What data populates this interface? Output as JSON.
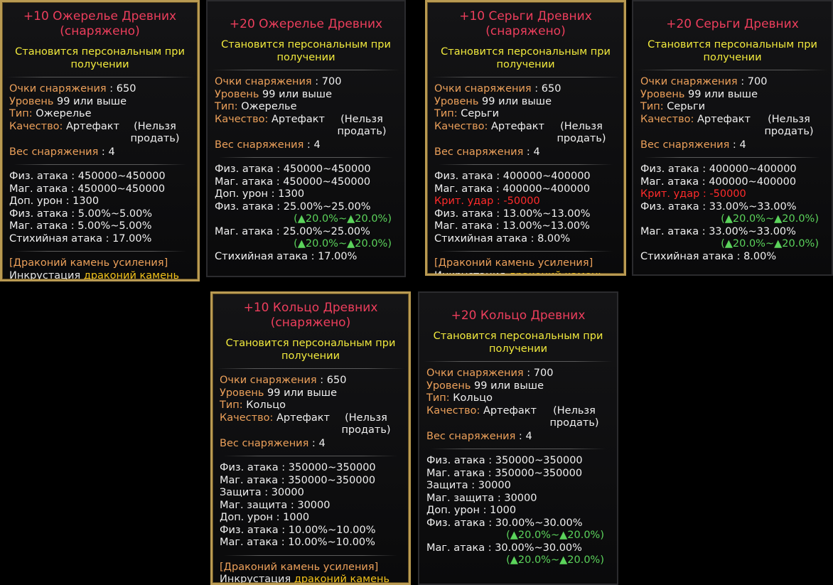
{
  "labels": {
    "gear_score": "Очки снаряжения",
    "level": "Уровень",
    "level_suffix": "или выше",
    "type": "Тип:",
    "quality": "Качество:",
    "weight": "Вес снаряжения",
    "bind": "Становится персональным при получении",
    "unsellable": "(Нельзя продать)",
    "gem": "[Драконий камень усиления]",
    "gem_prefix": "Инкрустация",
    "gem_name": "драконий камень"
  },
  "tooltips": [
    {
      "title": "+10 Ожерелье Древних\n(снаряжено)",
      "equipped": true,
      "gear_score": "650",
      "level": "99",
      "type": "Ожерелье",
      "quality": "Артефакт",
      "weight": "4",
      "stats": [
        {
          "text": "Физ. атака : 450000~450000"
        },
        {
          "text": "Маг. атака : 450000~450000"
        },
        {
          "text": "Доп. урон : 1300"
        },
        {
          "text": "Физ. атака : 5.00%~5.00%"
        },
        {
          "text": "Маг. атака : 5.00%~5.00%"
        },
        {
          "text": "Стихийная атака : 17.00%"
        }
      ],
      "has_gem": true
    },
    {
      "title": "+20 Ожерелье Древних",
      "equipped": false,
      "gear_score": "700",
      "level": "99",
      "type": "Ожерелье",
      "quality": "Артефакт",
      "weight": "4",
      "stats": [
        {
          "text": "Физ. атака : 450000~450000"
        },
        {
          "text": "Маг. атака : 450000~450000"
        },
        {
          "text": "Доп. урон : 1300"
        },
        {
          "text": "Физ. атака : 25.00%~25.00%",
          "bonus": "(▲20.0%~▲20.0%)"
        },
        {
          "text": "Маг. атака : 25.00%~25.00%",
          "bonus": "(▲20.0%~▲20.0%)"
        },
        {
          "text": "Стихийная атака : 17.00%"
        }
      ],
      "has_gem": false
    },
    {
      "title": "+10 Серьги Древних\n(снаряжено)",
      "equipped": true,
      "gear_score": "650",
      "level": "99",
      "type": "Серьги",
      "quality": "Артефакт",
      "weight": "4",
      "stats": [
        {
          "text": "Физ. атака : 400000~400000"
        },
        {
          "text": "Маг. атака : 400000~400000"
        },
        {
          "text": "Крит. удар : -50000",
          "red": true
        },
        {
          "text": "Физ. атака : 13.00%~13.00%"
        },
        {
          "text": "Маг. атака : 13.00%~13.00%"
        },
        {
          "text": "Стихийная атака : 8.00%"
        }
      ],
      "has_gem": true
    },
    {
      "title": "+20 Серьги Древних",
      "equipped": false,
      "gear_score": "700",
      "level": "99",
      "type": "Серьги",
      "quality": "Артефакт",
      "weight": "4",
      "stats": [
        {
          "text": "Физ. атака : 400000~400000"
        },
        {
          "text": "Маг. атака : 400000~400000"
        },
        {
          "text": "Крит. удар : -50000",
          "red": true
        },
        {
          "text": "Физ. атака : 33.00%~33.00%",
          "bonus": "(▲20.0%~▲20.0%)"
        },
        {
          "text": "Маг. атака : 33.00%~33.00%",
          "bonus": "(▲20.0%~▲20.0%)"
        },
        {
          "text": "Стихийная атака : 8.00%"
        }
      ],
      "has_gem": false
    },
    {
      "title": "+10 Кольцо Древних\n(снаряжено)",
      "equipped": true,
      "gear_score": "650",
      "level": "99",
      "type": "Кольцо",
      "quality": "Артефакт",
      "weight": "4",
      "stats": [
        {
          "text": "Физ. атака : 350000~350000"
        },
        {
          "text": "Маг. атака : 350000~350000"
        },
        {
          "text": "Защита : 30000"
        },
        {
          "text": "Маг. защита : 30000"
        },
        {
          "text": "Доп. урон : 1000"
        },
        {
          "text": "Физ. атака : 10.00%~10.00%"
        },
        {
          "text": "Маг. атака : 10.00%~10.00%"
        }
      ],
      "has_gem": true
    },
    {
      "title": "+20 Кольцо Древних",
      "equipped": false,
      "gear_score": "700",
      "level": "99",
      "type": "Кольцо",
      "quality": "Артефакт",
      "weight": "4",
      "stats": [
        {
          "text": "Физ. атака : 350000~350000"
        },
        {
          "text": "Маг. атака : 350000~350000"
        },
        {
          "text": "Защита : 30000"
        },
        {
          "text": "Маг. защита : 30000"
        },
        {
          "text": "Доп. урон : 1000"
        },
        {
          "text": "Физ. атака : 30.00%~30.00%",
          "bonus": "(▲20.0%~▲20.0%)"
        },
        {
          "text": "Маг. атака : 30.00%~30.00%",
          "bonus": "(▲20.0%~▲20.0%)"
        }
      ],
      "has_gem": false
    }
  ]
}
